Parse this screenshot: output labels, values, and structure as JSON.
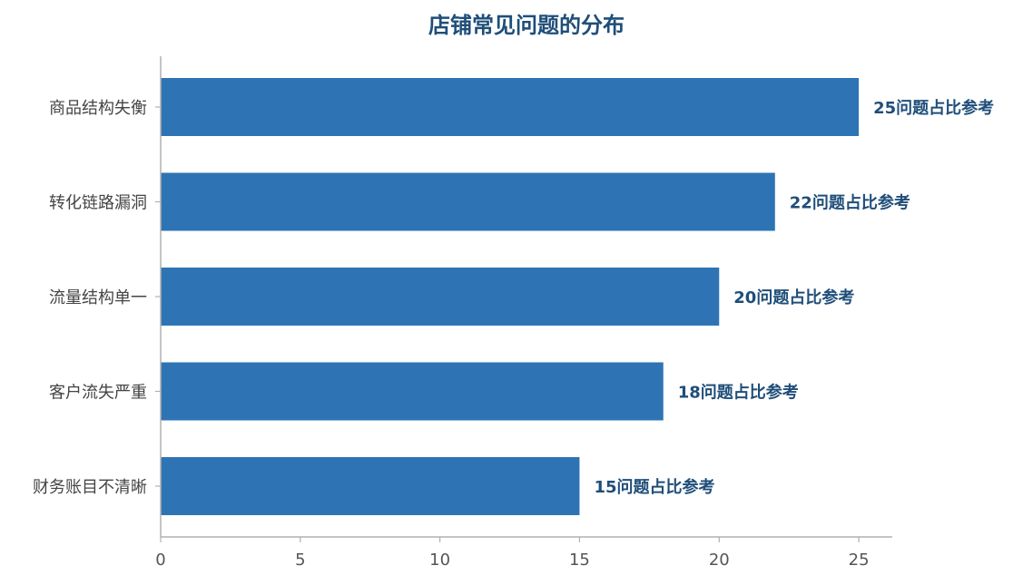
{
  "chart_data": {
    "type": "bar",
    "orientation": "horizontal",
    "title": "店铺常见问题的分布",
    "categories": [
      "商品结构失衡",
      "转化链路漏洞",
      "流量结构单一",
      "客户流失严重",
      "财务账目不清晰"
    ],
    "values": [
      25,
      22,
      20,
      18,
      15
    ],
    "data_labels": [
      "25问题占比参考",
      "22问题占比参考",
      "20问题占比参考",
      "18问题占比参考",
      "15问题占比参考"
    ],
    "x_ticks": [
      0,
      5,
      10,
      15,
      20,
      25
    ],
    "xlim": [
      0,
      26.2
    ],
    "xlabel": "",
    "ylabel": "",
    "grid": false,
    "legend": "none",
    "colors": {
      "bar": "#2e74b5",
      "title": "#1f4e79",
      "data_label": "#1f4e79"
    }
  }
}
